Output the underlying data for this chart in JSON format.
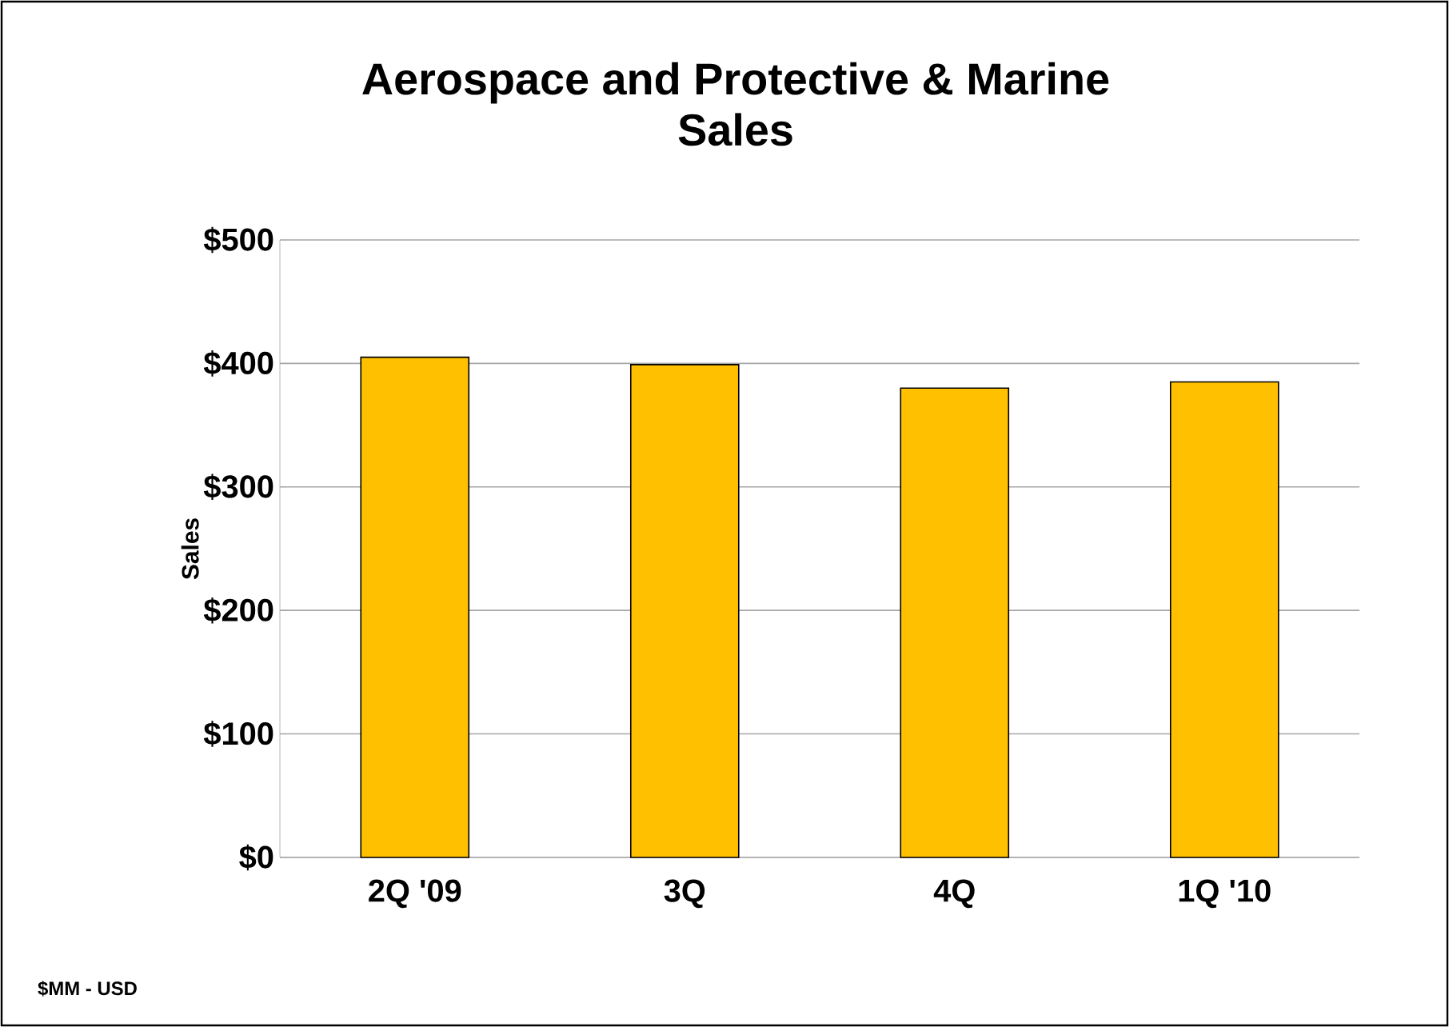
{
  "chart_data": {
    "type": "bar",
    "title": "Aerospace and Protective & Marine Sales",
    "ylabel": "Sales",
    "categories": [
      "2Q '09",
      "3Q",
      "4Q",
      "1Q '10"
    ],
    "values": [
      405,
      399,
      380,
      385
    ],
    "color": "#ffc000",
    "ylim": [
      0,
      500
    ],
    "yticks": [
      {
        "value": 0,
        "label": "$0"
      },
      {
        "value": 100,
        "label": "$100"
      },
      {
        "value": 200,
        "label": "$200"
      },
      {
        "value": 300,
        "label": "$300"
      },
      {
        "value": 400,
        "label": "$400"
      },
      {
        "value": 500,
        "label": "$500"
      }
    ],
    "grid": "y",
    "annotations": [
      "$MM - USD"
    ]
  }
}
